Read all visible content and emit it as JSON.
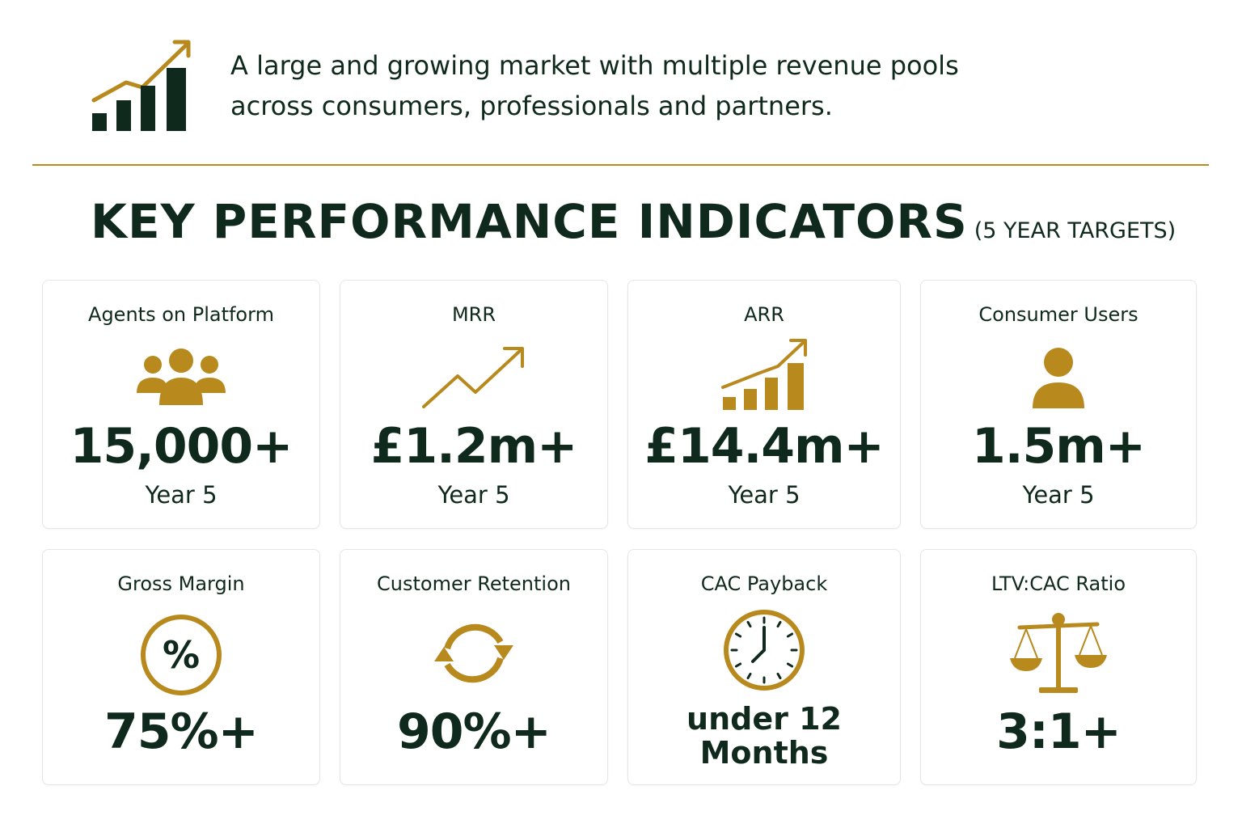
{
  "header": {
    "icon": "growth-bar-chart-icon",
    "intro_lines": [
      "A large and growing market with multiple revenue pools",
      "across consumers, professionals and partners."
    ]
  },
  "kpi": {
    "title": "KEY PERFORMANCE INDICATORS",
    "subtitle": "(5 YEAR TARGETS)",
    "cards": [
      {
        "label": "Agents on Platform",
        "icon": "people-group-icon",
        "value": "15,000+",
        "sub": "Year 5"
      },
      {
        "label": "MRR",
        "icon": "trend-up-line-icon",
        "value": "£1.2m+",
        "sub": "Year 5"
      },
      {
        "label": "ARR",
        "icon": "growth-bar-chart-icon",
        "value": "£14.4m+",
        "sub": "Year 5"
      },
      {
        "label": "Consumer Users",
        "icon": "user-icon",
        "value": "1.5m+",
        "sub": "Year 5"
      },
      {
        "label": "Gross Margin",
        "icon": "percent-circle-icon",
        "value": "75%+"
      },
      {
        "label": "Customer Retention",
        "icon": "refresh-cycle-icon",
        "value": "90%+"
      },
      {
        "label": "CAC Payback",
        "icon": "clock-icon",
        "value_lines": [
          "under 12",
          "Months"
        ]
      },
      {
        "label": "LTV:CAC Ratio",
        "icon": "balance-scale-icon",
        "value": "3:1+"
      }
    ]
  },
  "colors": {
    "dark_green": "#0f2a1c",
    "gold": "#b8891d",
    "card_border": "#e6e6e6"
  }
}
